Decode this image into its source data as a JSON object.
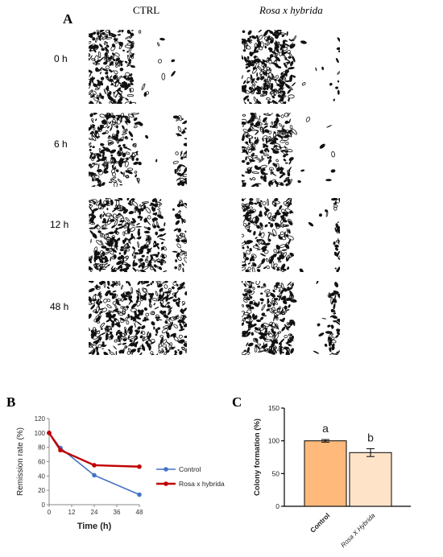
{
  "panel_a": {
    "letter": "A",
    "column_headers": [
      "CTRL",
      "Rosa x hybrida"
    ],
    "row_labels": [
      "0 h",
      "6 h",
      "12 h",
      "48 h"
    ]
  },
  "panel_b": {
    "letter": "B"
  },
  "panel_c": {
    "letter": "C"
  },
  "chart_data": [
    {
      "type": "line",
      "title": "",
      "xlabel": "Time (h)",
      "ylabel": "Remission rate (%)",
      "x": [
        0,
        6,
        24,
        48
      ],
      "xticks": [
        0,
        12,
        24,
        36,
        48
      ],
      "yticks": [
        0,
        20,
        40,
        60,
        80,
        100,
        120
      ],
      "xlim": [
        0,
        48
      ],
      "ylim": [
        0,
        120
      ],
      "legend_position": "right",
      "series": [
        {
          "name": "Control",
          "color": "#4472C4",
          "values": [
            100,
            79,
            41,
            14
          ]
        },
        {
          "name": "Rosa x hybrida",
          "color": "#C00000",
          "values": [
            100,
            76,
            55,
            53
          ]
        }
      ]
    },
    {
      "type": "bar",
      "title": "",
      "xlabel": "",
      "ylabel": "Colony formation (%)",
      "categories": [
        "Control",
        "Rosa X Hybrida"
      ],
      "values": [
        100,
        82
      ],
      "errors": [
        2,
        6
      ],
      "letters": [
        "a",
        "b"
      ],
      "colors": [
        "#FFB97A",
        "#FFE3C9"
      ],
      "yticks": [
        0,
        50,
        100,
        150
      ],
      "ylim": [
        0,
        150
      ]
    }
  ]
}
